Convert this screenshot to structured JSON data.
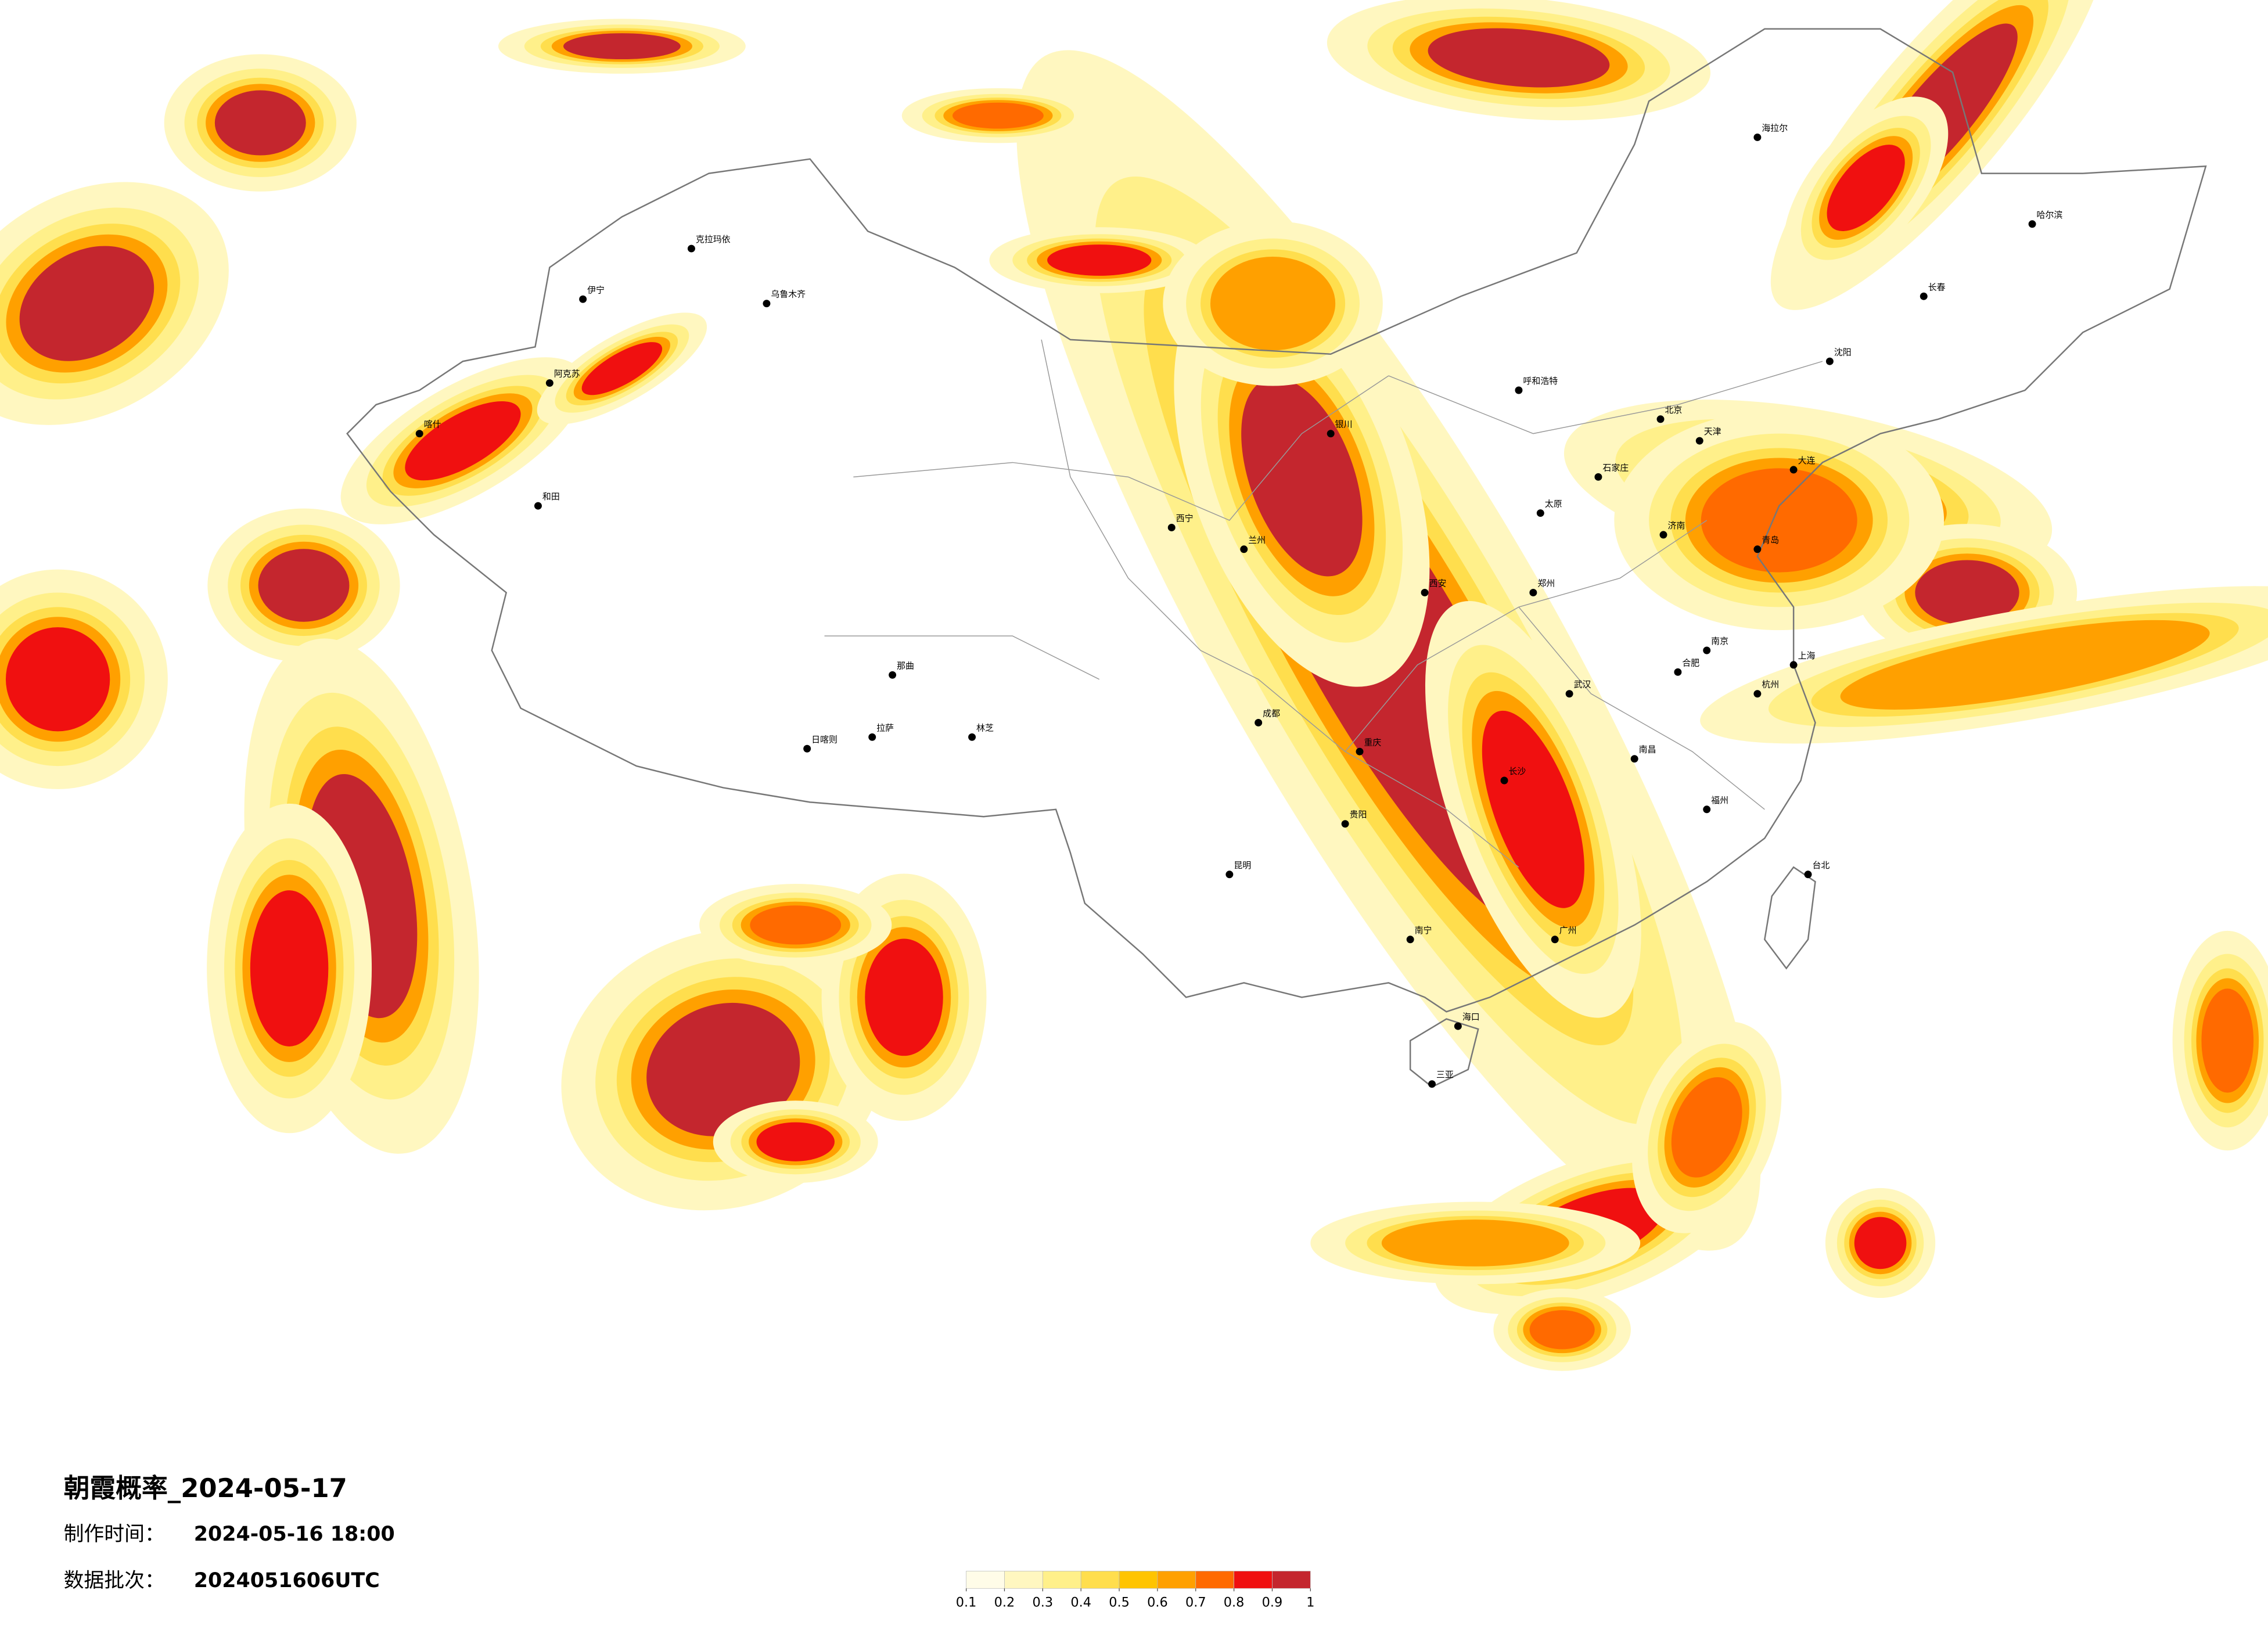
{
  "header": {
    "title": "朝霞概率_2024-05-17"
  },
  "meta": [
    {
      "label": "制作时间：",
      "value": "2024-05-16 18:00"
    },
    {
      "label": "数据批次：",
      "value": "2024051606UTC"
    }
  ],
  "legend": {
    "ticks": [
      0.1,
      0.2,
      0.3,
      0.4,
      0.5,
      0.6,
      0.7,
      0.8,
      0.9,
      1
    ],
    "colors": [
      "#fffce8",
      "#fff7c0",
      "#fff08a",
      "#ffde4d",
      "#ffc400",
      "#ffa000",
      "#ff6a00",
      "#f01010",
      "#c4262e"
    ]
  },
  "cities": [
    "北京",
    "天津",
    "石家庄",
    "太原",
    "呼和浩特",
    "沈阳",
    "长春",
    "哈尔滨",
    "海拉尔",
    "乌鲁木齐",
    "克拉玛依",
    "伊宁",
    "阿克苏",
    "和田",
    "喀什",
    "拉萨",
    "日喀则",
    "林芝",
    "那曲",
    "西宁",
    "兰州",
    "银川",
    "西安",
    "成都",
    "重庆",
    "贵阳",
    "昆明",
    "南宁",
    "广州",
    "福州",
    "台北",
    "海口",
    "三亚",
    "武汉",
    "长沙",
    "南昌",
    "杭州",
    "上海",
    "南京",
    "合肥",
    "郑州",
    "济南",
    "青岛",
    "大连"
  ]
}
